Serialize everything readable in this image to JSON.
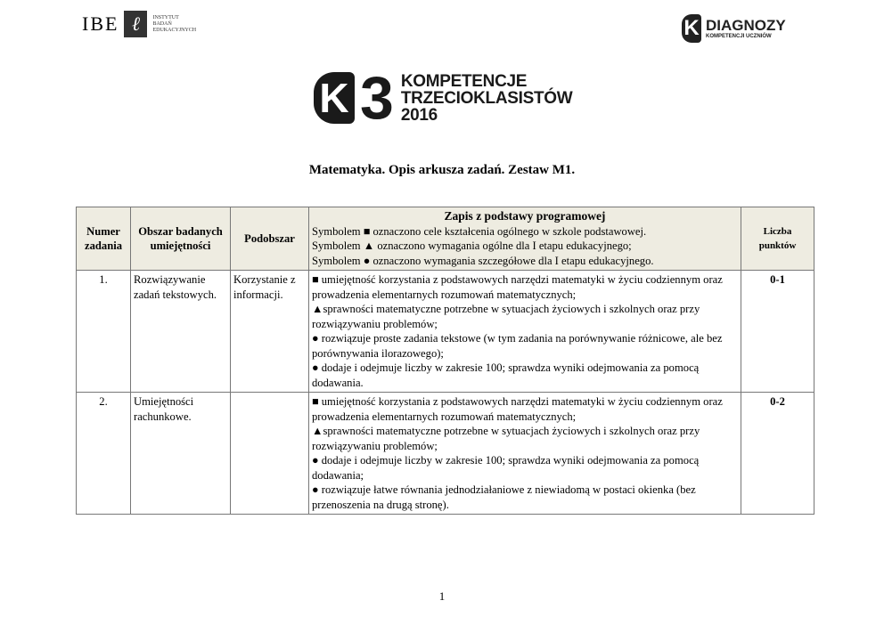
{
  "logos": {
    "ibe": "IBE",
    "ibe_sub": [
      "INSTYTUT",
      "BADAŃ",
      "EDUKACYJNYCH"
    ],
    "diagnozy": "DIAGNOZY",
    "diagnozy_sub": "KOMPETENCJI UCZNIÓW",
    "k3_lines": [
      "KOMPETENCJE",
      "TRZECIOKLASISTÓW",
      "2016"
    ]
  },
  "title": "Matematyka. Opis arkusza zadań. Zestaw M1.",
  "table": {
    "headers": {
      "numer": "Numer zadania",
      "obszar": "Obszar badanych umiejętności",
      "podobszar": "Podobszar",
      "zapis_title": "Zapis z podstawy programowej",
      "zapis_lines": [
        "Symbolem ■ oznaczono cele kształcenia ogólnego w szkole podstawowej.",
        "Symbolem ▲ oznaczono wymagania ogólne dla I etapu edukacyjnego;",
        "Symbolem ● oznaczono wymagania szczegółowe dla I etapu edukacyjnego."
      ],
      "punkty": "Liczba punktów"
    },
    "rows": [
      {
        "numer": "1.",
        "obszar": "Rozwiązywanie zadań tekstowych.",
        "podobszar": "Korzystanie z informacji.",
        "zapis": [
          "■ umiejętność korzystania z podstawowych narzędzi matematyki w życiu codziennym oraz prowadzenia elementarnych rozumowań matematycznych;",
          "▲sprawności matematyczne potrzebne w sytuacjach życiowych i szkolnych oraz przy rozwiązywaniu problemów;",
          "● rozwiązuje proste zadania tekstowe (w tym zadania na porównywanie różnicowe, ale bez porównywania ilorazowego);",
          "● dodaje i odejmuje liczby w zakresie 100; sprawdza wyniki odejmowania za pomocą dodawania."
        ],
        "punkty": "0-1"
      },
      {
        "numer": "2.",
        "obszar": "Umiejętności rachunkowe.",
        "podobszar": "",
        "zapis": [
          "■ umiejętność korzystania z podstawowych narzędzi matematyki w życiu codziennym oraz prowadzenia elementarnych rozumowań matematycznych;",
          "▲sprawności matematyczne potrzebne w sytuacjach życiowych i szkolnych oraz przy rozwiązywaniu problemów;",
          "● dodaje i odejmuje liczby w zakresie 100; sprawdza wyniki odejmowania za pomocą dodawania;",
          "● rozwiązuje łatwe równania jednodziałaniowe z niewiadomą w postaci okienka (bez przenoszenia na drugą stronę)."
        ],
        "punkty": "0-2"
      }
    ]
  },
  "page_number": "1"
}
